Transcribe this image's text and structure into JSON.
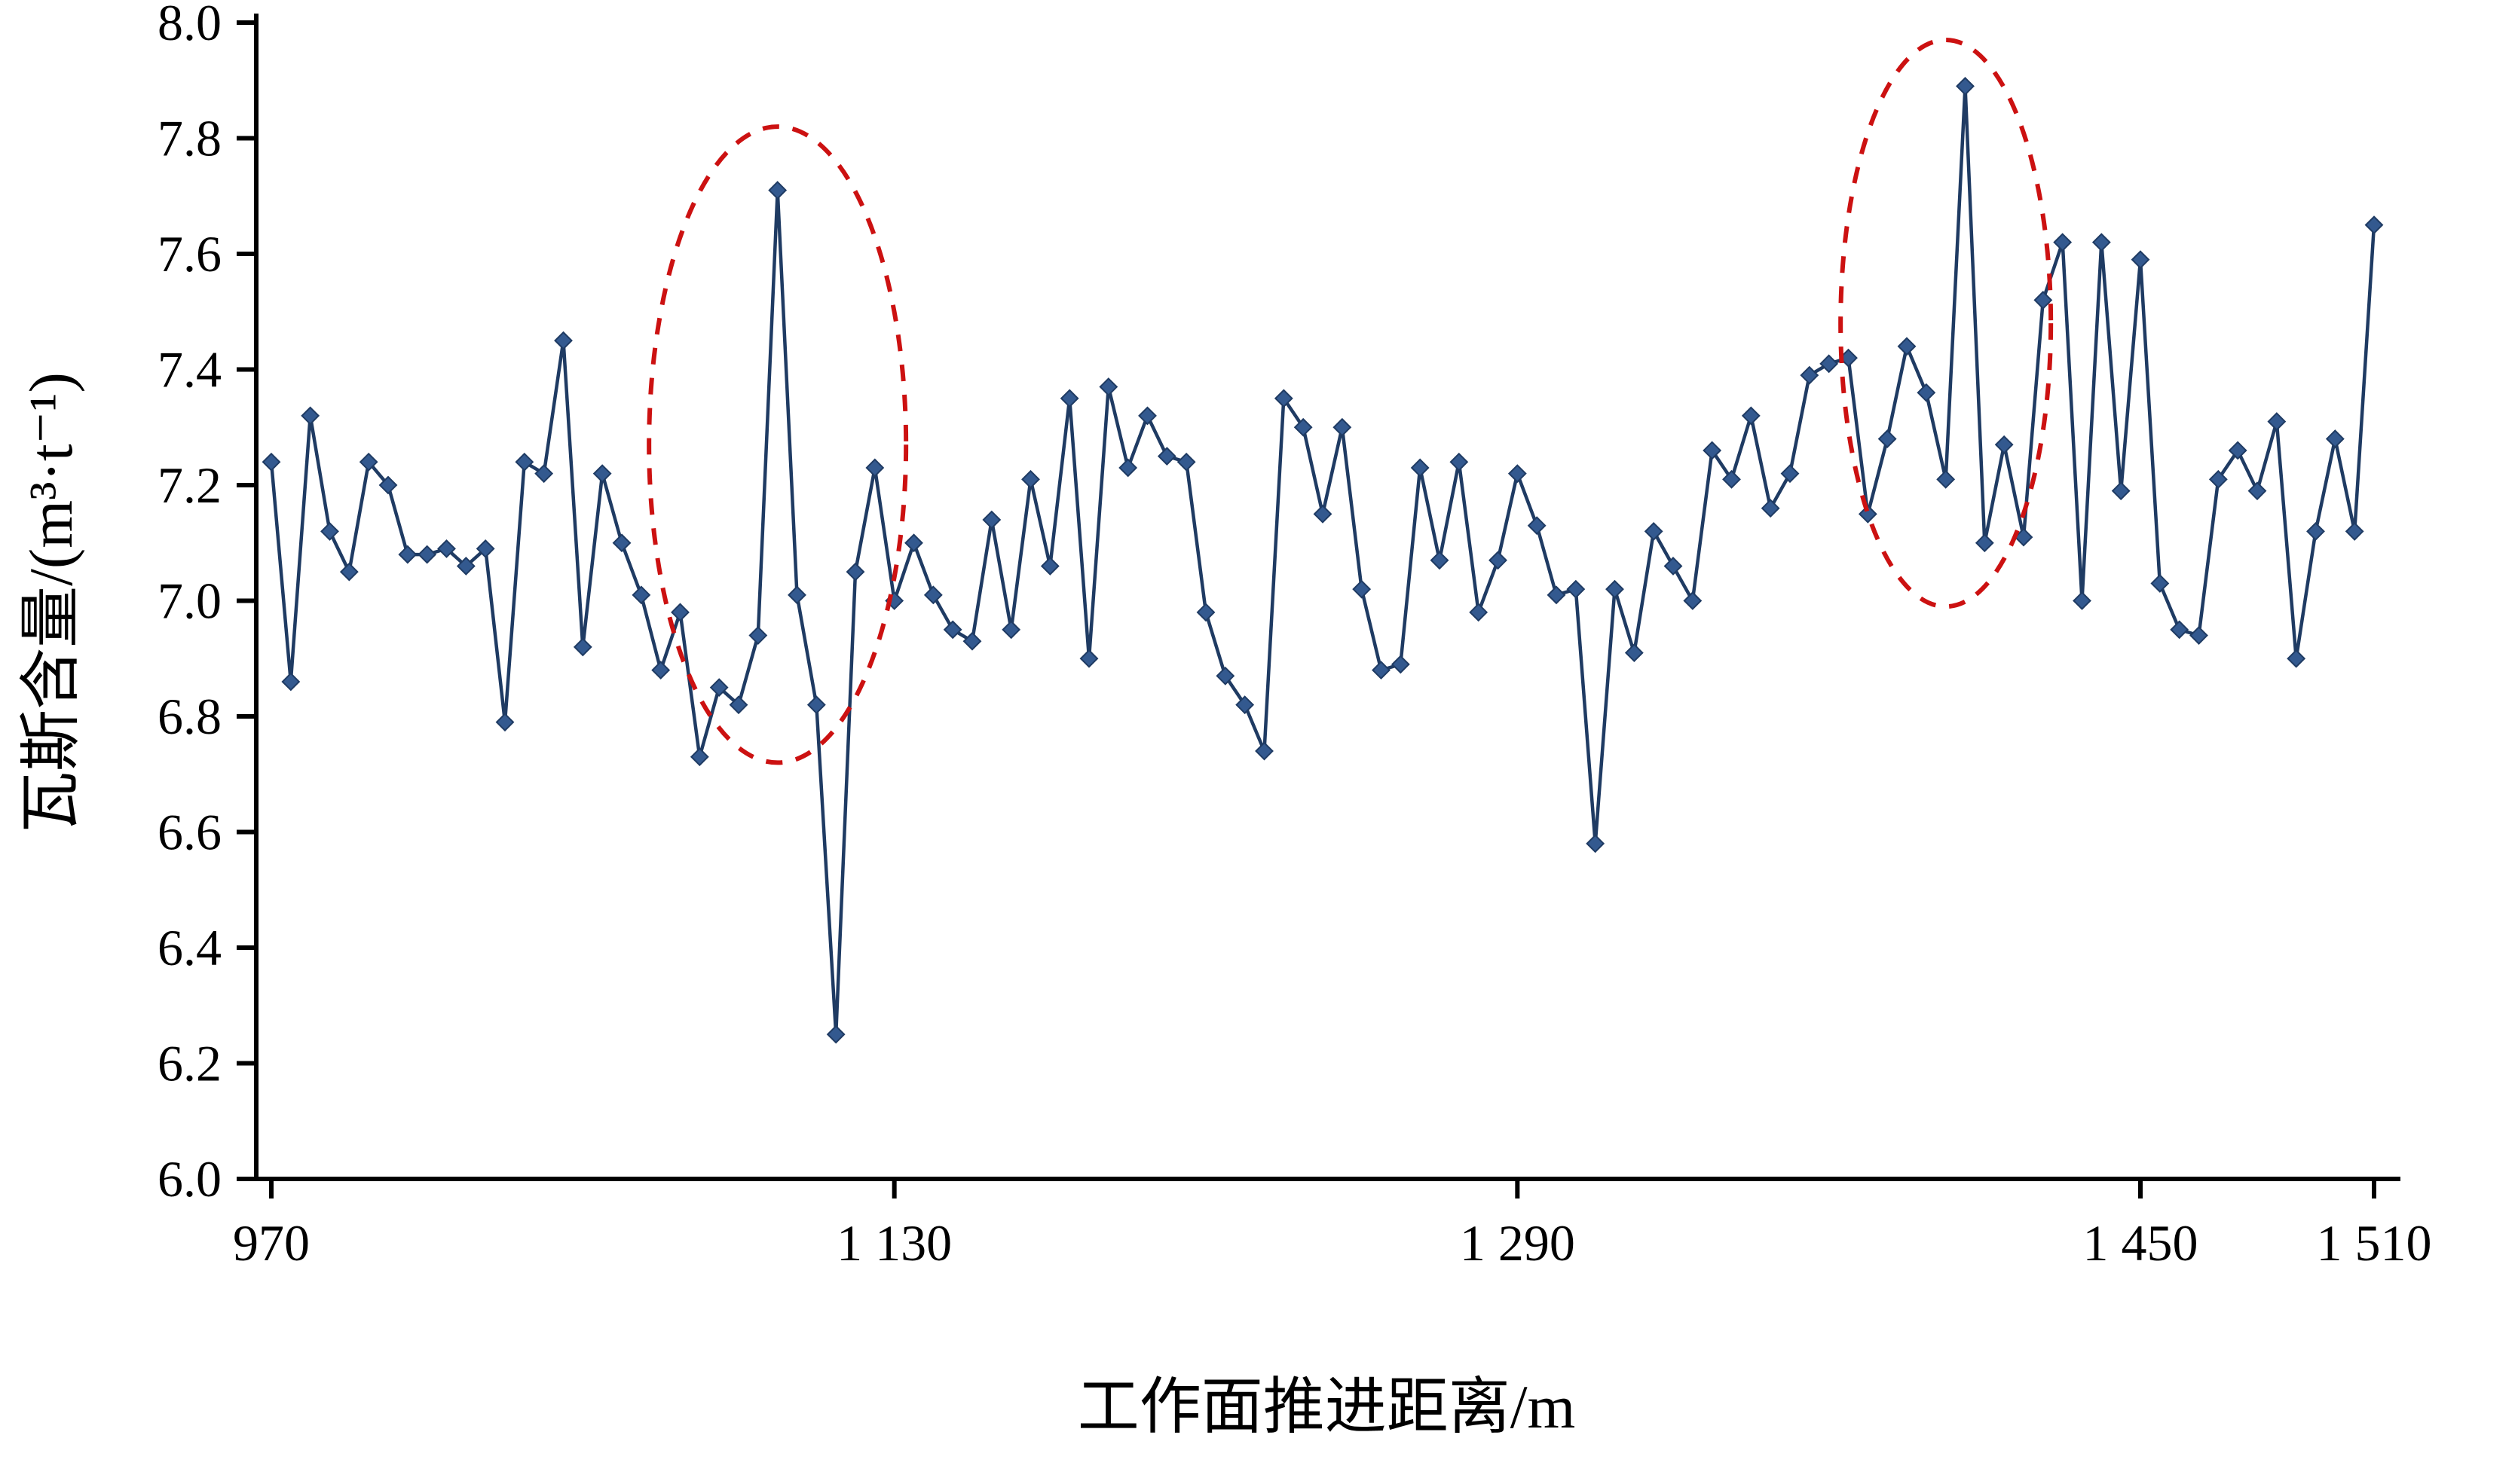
{
  "figure": {
    "background": "#ffffff"
  },
  "chart_data": {
    "type": "line",
    "title": "",
    "xlabel": "工作面推进距离/m",
    "ylabel": "瓦斯含量/(m³·t⁻¹)",
    "xlim": [
      970,
      1510
    ],
    "ylim": [
      6.0,
      8.0
    ],
    "grid": false,
    "legend": "none",
    "line_color": "#1f3b63",
    "marker": "diamond",
    "marker_color": "#33598f",
    "annotation_color": "#cc1111",
    "xticks": [
      {
        "value": 970,
        "label": "970"
      },
      {
        "value": 1130,
        "label": "1 130"
      },
      {
        "value": 1290,
        "label": "1 290"
      },
      {
        "value": 1450,
        "label": "1 450"
      },
      {
        "value": 1510,
        "label": "1 510"
      }
    ],
    "yticks": [
      {
        "value": 6.0,
        "label": "6.0"
      },
      {
        "value": 6.2,
        "label": "6.2"
      },
      {
        "value": 6.4,
        "label": "6.4"
      },
      {
        "value": 6.6,
        "label": "6.6"
      },
      {
        "value": 6.8,
        "label": "6.8"
      },
      {
        "value": 7.0,
        "label": "7.0"
      },
      {
        "value": 7.2,
        "label": "7.2"
      },
      {
        "value": 7.4,
        "label": "7.4"
      },
      {
        "value": 7.6,
        "label": "7.6"
      },
      {
        "value": 7.8,
        "label": "7.8"
      },
      {
        "value": 8.0,
        "label": "8.0"
      }
    ],
    "series": [
      {
        "name": "瓦斯含量",
        "points": [
          [
            970,
            7.24
          ],
          [
            975,
            6.86
          ],
          [
            980,
            7.32
          ],
          [
            985,
            7.12
          ],
          [
            990,
            7.05
          ],
          [
            995,
            7.24
          ],
          [
            1000,
            7.2
          ],
          [
            1005,
            7.08
          ],
          [
            1010,
            7.08
          ],
          [
            1015,
            7.09
          ],
          [
            1020,
            7.06
          ],
          [
            1025,
            7.09
          ],
          [
            1030,
            6.79
          ],
          [
            1035,
            7.24
          ],
          [
            1040,
            7.22
          ],
          [
            1045,
            7.45
          ],
          [
            1050,
            6.92
          ],
          [
            1055,
            7.22
          ],
          [
            1060,
            7.1
          ],
          [
            1065,
            7.01
          ],
          [
            1070,
            6.88
          ],
          [
            1075,
            6.98
          ],
          [
            1080,
            6.73
          ],
          [
            1085,
            6.85
          ],
          [
            1090,
            6.82
          ],
          [
            1095,
            6.94
          ],
          [
            1100,
            7.71
          ],
          [
            1105,
            7.01
          ],
          [
            1110,
            6.82
          ],
          [
            1115,
            6.25
          ],
          [
            1120,
            7.05
          ],
          [
            1125,
            7.23
          ],
          [
            1130,
            7.0
          ],
          [
            1135,
            7.1
          ],
          [
            1140,
            7.01
          ],
          [
            1145,
            6.95
          ],
          [
            1150,
            6.93
          ],
          [
            1155,
            7.14
          ],
          [
            1160,
            6.95
          ],
          [
            1165,
            7.21
          ],
          [
            1170,
            7.06
          ],
          [
            1175,
            7.35
          ],
          [
            1180,
            6.9
          ],
          [
            1185,
            7.37
          ],
          [
            1190,
            7.23
          ],
          [
            1195,
            7.32
          ],
          [
            1200,
            7.25
          ],
          [
            1205,
            7.24
          ],
          [
            1210,
            6.98
          ],
          [
            1215,
            6.87
          ],
          [
            1220,
            6.82
          ],
          [
            1225,
            6.74
          ],
          [
            1230,
            7.35
          ],
          [
            1235,
            7.3
          ],
          [
            1240,
            7.15
          ],
          [
            1245,
            7.3
          ],
          [
            1250,
            7.02
          ],
          [
            1255,
            6.88
          ],
          [
            1260,
            6.89
          ],
          [
            1265,
            7.23
          ],
          [
            1270,
            7.07
          ],
          [
            1275,
            7.24
          ],
          [
            1280,
            6.98
          ],
          [
            1285,
            7.07
          ],
          [
            1290,
            7.22
          ],
          [
            1295,
            7.13
          ],
          [
            1300,
            7.01
          ],
          [
            1305,
            7.02
          ],
          [
            1310,
            6.58
          ],
          [
            1315,
            7.02
          ],
          [
            1320,
            6.91
          ],
          [
            1325,
            7.12
          ],
          [
            1330,
            7.06
          ],
          [
            1335,
            7.0
          ],
          [
            1340,
            7.26
          ],
          [
            1345,
            7.21
          ],
          [
            1350,
            7.32
          ],
          [
            1355,
            7.16
          ],
          [
            1360,
            7.22
          ],
          [
            1365,
            7.39
          ],
          [
            1370,
            7.41
          ],
          [
            1375,
            7.42
          ],
          [
            1380,
            7.15
          ],
          [
            1385,
            7.28
          ],
          [
            1390,
            7.44
          ],
          [
            1395,
            7.36
          ],
          [
            1400,
            7.21
          ],
          [
            1405,
            7.89
          ],
          [
            1410,
            7.1
          ],
          [
            1415,
            7.27
          ],
          [
            1420,
            7.11
          ],
          [
            1425,
            7.52
          ],
          [
            1430,
            7.62
          ],
          [
            1435,
            7.0
          ],
          [
            1440,
            7.62
          ],
          [
            1445,
            7.19
          ],
          [
            1450,
            7.59
          ],
          [
            1455,
            7.03
          ],
          [
            1460,
            6.95
          ],
          [
            1465,
            6.94
          ],
          [
            1470,
            7.21
          ],
          [
            1475,
            7.26
          ],
          [
            1480,
            7.19
          ],
          [
            1485,
            7.31
          ],
          [
            1490,
            6.9
          ],
          [
            1495,
            7.12
          ],
          [
            1500,
            7.28
          ],
          [
            1505,
            7.12
          ],
          [
            1510,
            7.65
          ]
        ]
      }
    ],
    "annotations": [
      {
        "type": "ellipse",
        "style": "dashed",
        "cx": 1100,
        "cy": 7.27,
        "rx": 33,
        "ry": 0.55
      },
      {
        "type": "ellipse",
        "style": "dashed",
        "cx": 1400,
        "cy": 7.48,
        "rx": 27,
        "ry": 0.49
      }
    ]
  }
}
